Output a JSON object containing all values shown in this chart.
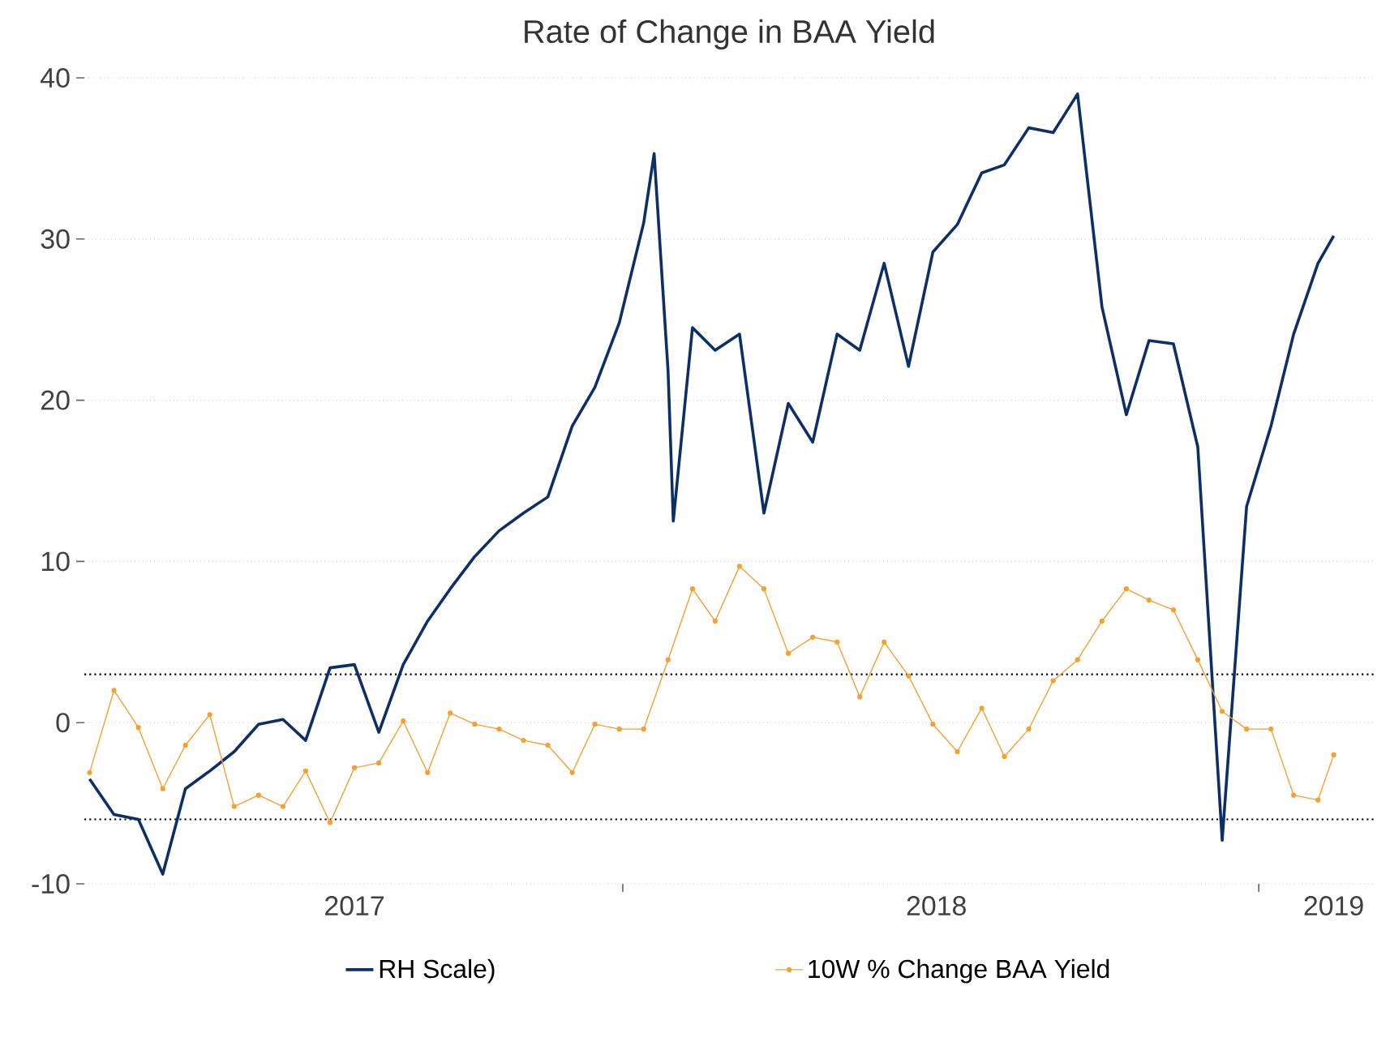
{
  "chart_data": {
    "type": "line",
    "title": "Rate of Change in BAA Yield",
    "xlim": [
      "2017-02-26",
      "2019-03-08"
    ],
    "ylim": [
      -10,
      40
    ],
    "yticks": [
      -10,
      0,
      10,
      20,
      30,
      40
    ],
    "xticks": [
      {
        "value": "2018-01-01",
        "label": null
      },
      {
        "value": "2019-01-01",
        "label": null
      },
      {
        "value": "2017-07-31",
        "label": "2017"
      },
      {
        "value": "2018-06-30",
        "label": "2018"
      },
      {
        "value": "2019-02-13",
        "label": "2019"
      }
    ],
    "grid": "y",
    "legend": "bottom",
    "ref_lines": [
      {
        "axis": "y",
        "value": 3,
        "color": "#000000",
        "line_style": "dotted"
      },
      {
        "axis": "y",
        "value": -6,
        "color": "#000000",
        "line_style": "dotted"
      }
    ],
    "series": [
      {
        "name": "RH Scale)",
        "color": "#0d2f66",
        "marker": "none",
        "x": [
          "2017-03-01",
          "2017-03-15",
          "2017-03-29",
          "2017-04-12",
          "2017-04-25",
          "2017-05-09",
          "2017-05-23",
          "2017-06-06",
          "2017-06-20",
          "2017-07-03",
          "2017-07-17",
          "2017-07-31",
          "2017-08-14",
          "2017-08-28",
          "2017-09-11",
          "2017-09-24",
          "2017-10-08",
          "2017-10-22",
          "2017-11-05",
          "2017-11-19",
          "2017-12-03",
          "2017-12-16",
          "2017-12-30",
          "2018-01-13",
          "2018-01-19",
          "2018-01-27",
          "2018-01-30",
          "2018-02-10",
          "2018-02-23",
          "2018-03-09",
          "2018-03-23",
          "2018-04-06",
          "2018-04-20",
          "2018-05-04",
          "2018-05-17",
          "2018-05-31",
          "2018-06-14",
          "2018-06-28",
          "2018-07-12",
          "2018-07-26",
          "2018-08-08",
          "2018-08-22",
          "2018-09-05",
          "2018-09-19",
          "2018-10-03",
          "2018-10-17",
          "2018-10-30",
          "2018-11-13",
          "2018-11-27",
          "2018-12-11",
          "2018-12-25",
          "2019-01-08",
          "2019-01-21",
          "2019-02-04",
          "2019-02-13"
        ],
        "values": [
          -3.5,
          -5.7,
          -6.0,
          -9.4,
          -4.1,
          -3.0,
          -1.8,
          -0.1,
          0.2,
          -1.1,
          3.4,
          3.6,
          -0.6,
          3.6,
          6.3,
          8.3,
          10.3,
          11.9,
          13.0,
          14.0,
          18.4,
          20.8,
          24.8,
          31.0,
          35.3,
          21.8,
          12.5,
          24.5,
          23.1,
          24.1,
          13.0,
          19.8,
          17.4,
          24.1,
          23.1,
          28.5,
          22.1,
          29.2,
          30.9,
          34.1,
          34.6,
          36.9,
          36.6,
          39.0,
          25.8,
          19.1,
          23.7,
          23.5,
          17.1,
          -7.3,
          13.4,
          18.4,
          24.1,
          28.5,
          30.2
        ]
      },
      {
        "name": "10W % Change BAA Yield",
        "color": "#f5a031",
        "marker": "circle",
        "x": [
          "2017-03-01",
          "2017-03-15",
          "2017-03-29",
          "2017-04-12",
          "2017-04-25",
          "2017-05-09",
          "2017-05-23",
          "2017-06-06",
          "2017-06-20",
          "2017-07-03",
          "2017-07-17",
          "2017-07-31",
          "2017-08-14",
          "2017-08-28",
          "2017-09-11",
          "2017-09-24",
          "2017-10-08",
          "2017-10-22",
          "2017-11-05",
          "2017-11-19",
          "2017-12-03",
          "2017-12-16",
          "2017-12-30",
          "2018-01-13",
          "2018-01-27",
          "2018-02-10",
          "2018-02-23",
          "2018-03-09",
          "2018-03-23",
          "2018-04-06",
          "2018-04-20",
          "2018-05-04",
          "2018-05-17",
          "2018-05-31",
          "2018-06-14",
          "2018-06-28",
          "2018-07-12",
          "2018-07-26",
          "2018-08-08",
          "2018-08-22",
          "2018-09-05",
          "2018-09-19",
          "2018-10-03",
          "2018-10-17",
          "2018-10-30",
          "2018-11-13",
          "2018-11-27",
          "2018-12-11",
          "2018-12-25",
          "2019-01-08",
          "2019-01-21",
          "2019-02-04",
          "2019-02-13"
        ],
        "values": [
          -3.1,
          2.0,
          -0.3,
          -4.1,
          -1.4,
          0.5,
          -5.2,
          -4.5,
          -5.2,
          -3.0,
          -6.2,
          -2.8,
          -2.5,
          0.1,
          -3.1,
          0.6,
          -0.1,
          -0.4,
          -1.1,
          -1.4,
          -3.1,
          -0.1,
          -0.4,
          -0.4,
          3.9,
          8.3,
          6.3,
          9.7,
          8.3,
          4.3,
          5.3,
          5.0,
          1.6,
          5.0,
          2.9,
          -0.1,
          -1.8,
          0.9,
          -2.1,
          -0.4,
          2.6,
          3.9,
          6.3,
          8.3,
          7.6,
          7.0,
          3.9,
          0.7,
          -0.4,
          -0.4,
          -4.5,
          -4.8,
          -2.0
        ]
      }
    ]
  }
}
